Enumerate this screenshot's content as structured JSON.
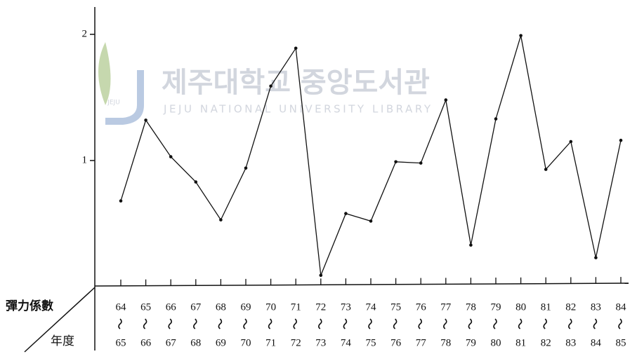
{
  "chart_data": {
    "type": "line",
    "watermark": {
      "title": "제주대학교 중앙도서관",
      "subtitle": "JEJU NATIONAL UNIVERSITY LIBRARY",
      "logo": "JEJU"
    },
    "row_labels": {
      "value": "彈力係數",
      "year": "年度"
    },
    "categories_start": [
      "64",
      "65",
      "66",
      "67",
      "68",
      "69",
      "70",
      "71",
      "72",
      "73",
      "74",
      "75",
      "76",
      "77",
      "78",
      "79",
      "80",
      "81",
      "82",
      "83",
      "84"
    ],
    "categories_end": [
      "65",
      "66",
      "67",
      "68",
      "69",
      "70",
      "71",
      "72",
      "73",
      "74",
      "75",
      "76",
      "77",
      "78",
      "79",
      "80",
      "81",
      "82",
      "83",
      "84",
      "85"
    ],
    "values": [
      0.68,
      1.32,
      1.03,
      0.83,
      0.53,
      0.94,
      1.59,
      1.89,
      0.09,
      0.58,
      0.52,
      0.99,
      0.98,
      1.48,
      0.33,
      1.33,
      1.99,
      0.93,
      1.15,
      0.23,
      1.16
    ],
    "color": "#111111",
    "ylim": [
      0,
      2.2
    ],
    "yticks": [
      1,
      2
    ]
  }
}
